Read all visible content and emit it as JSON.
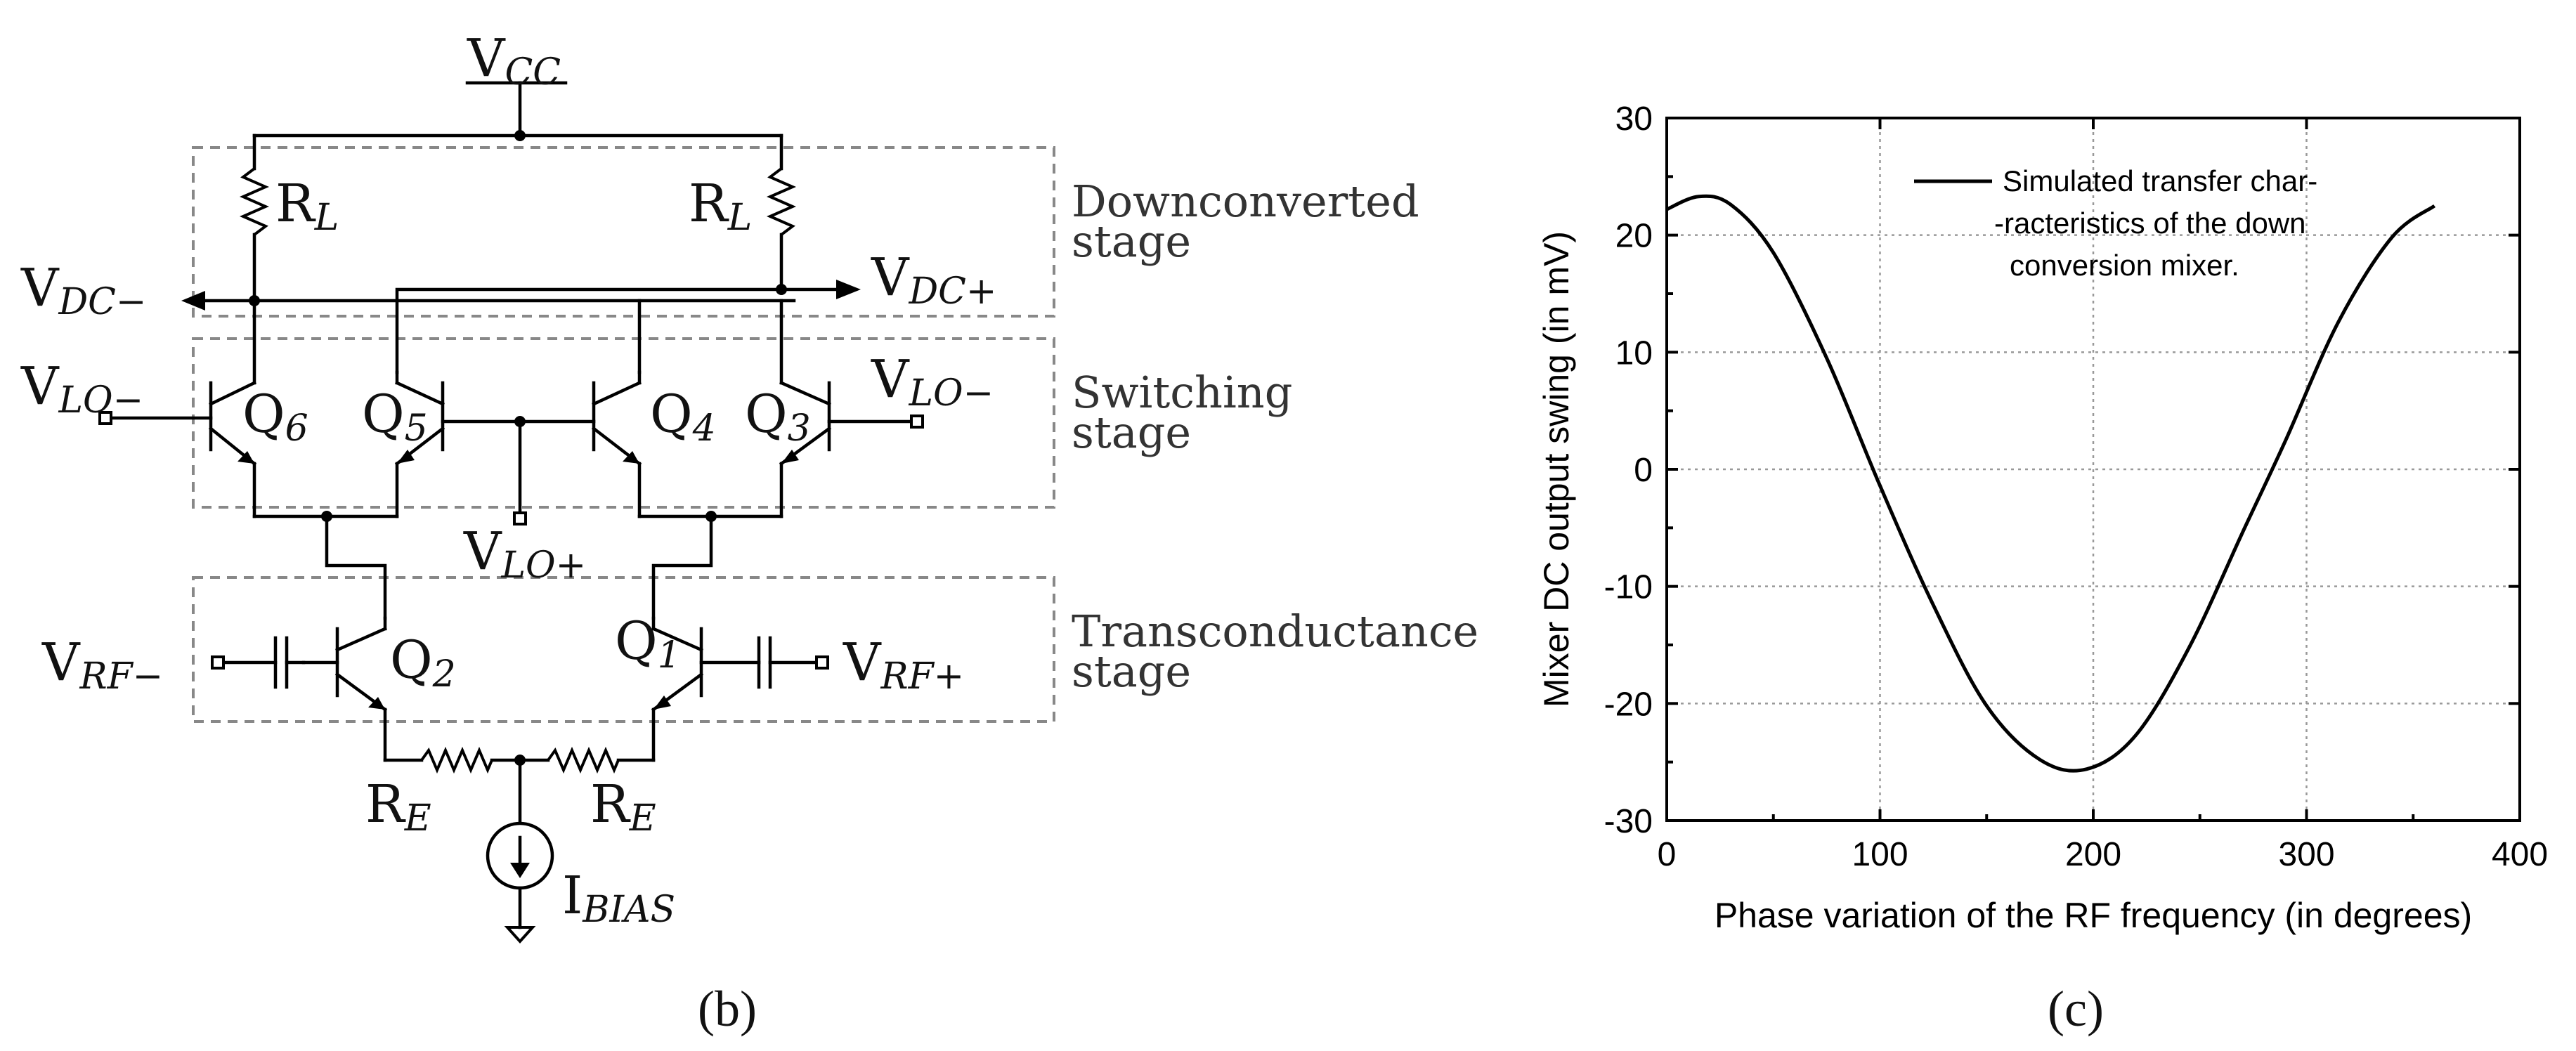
{
  "panel_b": {
    "panel_label": "(b)",
    "supply": {
      "main": "V",
      "sub": "CC"
    },
    "resistor_left": {
      "main": "R",
      "sub": "L"
    },
    "resistor_right": {
      "main": "R",
      "sub": "L"
    },
    "v_dc_minus": {
      "main": "V",
      "sub": "DC−"
    },
    "v_dc_plus": {
      "main": "V",
      "sub": "DC+"
    },
    "v_lo_minus_left": {
      "main": "V",
      "sub": "LO−"
    },
    "v_lo_minus_right": {
      "main": "V",
      "sub": "LO−"
    },
    "v_lo_plus": {
      "main": "V",
      "sub": "LO+"
    },
    "v_rf_minus": {
      "main": "V",
      "sub": "RF−"
    },
    "v_rf_plus": {
      "main": "V",
      "sub": "RF+"
    },
    "q6": {
      "main": "Q",
      "sub": "6"
    },
    "q5": {
      "main": "Q",
      "sub": "5"
    },
    "q4": {
      "main": "Q",
      "sub": "4"
    },
    "q3": {
      "main": "Q",
      "sub": "3"
    },
    "q2": {
      "main": "Q",
      "sub": "2"
    },
    "q1": {
      "main": "Q",
      "sub": "1"
    },
    "re_left": {
      "main": "R",
      "sub": "E"
    },
    "re_right": {
      "main": "R",
      "sub": "E"
    },
    "ibias": {
      "main": "I",
      "sub": "BIAS"
    },
    "stages": {
      "downconverted": [
        "Downconverted",
        "stage"
      ],
      "switching": [
        "Switching",
        "stage"
      ],
      "transconductance": [
        "Transconductance",
        "stage"
      ]
    }
  },
  "panel_c": {
    "panel_label": "(c)",
    "chart_data": {
      "type": "line",
      "title": "",
      "xlabel": "Phase variation of the RF frequency (in degrees)",
      "ylabel": "Mixer DC output swing (in mV)",
      "xlim": [
        0,
        400
      ],
      "ylim": [
        -30,
        30
      ],
      "xticks": [
        0,
        100,
        200,
        300,
        400
      ],
      "yticks": [
        30,
        20,
        10,
        0,
        -10,
        -20,
        -30
      ],
      "grid": true,
      "legend": {
        "placement": "top-center",
        "lines": [
          "Simulated transfer char-",
          "-racteristics of the down",
          "conversion mixer."
        ]
      },
      "series": [
        {
          "name": "Simulated transfer characteristics of the down conversion mixer",
          "x": [
            0,
            15,
            30,
            50,
            75,
            100,
            125,
            150,
            175,
            197,
            220,
            245,
            270,
            290,
            315,
            340,
            360
          ],
          "values": [
            22.2,
            23.3,
            22.6,
            18.5,
            9.5,
            -1.4,
            -11.6,
            -20.2,
            -24.8,
            -25.6,
            -22.7,
            -15.2,
            -5.4,
            2.4,
            12.6,
            19.8,
            22.5
          ]
        }
      ]
    }
  }
}
